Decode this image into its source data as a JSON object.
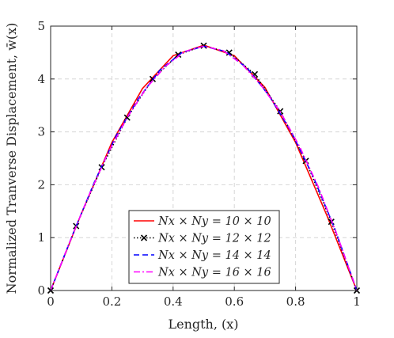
{
  "chart_data": {
    "type": "line",
    "title": "",
    "xlabel": "Length, (x)",
    "ylabel": "Normalized Tranverse Displacement, w̄(x)",
    "xlim": [
      0,
      1
    ],
    "ylim": [
      0,
      5
    ],
    "xticks": [
      "0",
      "0.2",
      "0.4",
      "0.6",
      "0.8",
      "1"
    ],
    "yticks": [
      "0",
      "1",
      "2",
      "3",
      "4",
      "5"
    ],
    "grid": true,
    "legend_position": "bottom-center",
    "series": [
      {
        "name": "Nx × Ny = 10 × 10",
        "color": "#ff0000",
        "style": "solid",
        "marker": "none",
        "x": [
          0,
          0.1,
          0.2,
          0.3,
          0.4,
          0.5,
          0.6,
          0.7,
          0.8,
          0.9,
          1.0
        ],
        "y": [
          0,
          1.45,
          2.8,
          3.82,
          4.44,
          4.64,
          4.44,
          3.84,
          2.8,
          1.45,
          0
        ]
      },
      {
        "name": "Nx × Ny = 12 × 12",
        "color": "#000000",
        "style": "dotted",
        "marker": "x",
        "x": [
          0,
          0.0833,
          0.1667,
          0.25,
          0.3333,
          0.4167,
          0.5,
          0.5833,
          0.6667,
          0.75,
          0.8333,
          0.9167,
          1.0
        ],
        "y": [
          0,
          1.22,
          2.33,
          3.27,
          4.0,
          4.46,
          4.63,
          4.5,
          4.09,
          3.39,
          2.45,
          1.3,
          0
        ]
      },
      {
        "name": "Nx × Ny = 14 × 14",
        "color": "#0000ff",
        "style": "dashed",
        "marker": "none",
        "x": [
          0,
          0.0714,
          0.1429,
          0.2143,
          0.2857,
          0.3571,
          0.4286,
          0.5,
          0.5714,
          0.6429,
          0.7143,
          0.7857,
          0.8571,
          0.9286,
          1.0
        ],
        "y": [
          0,
          1.05,
          2.05,
          2.93,
          3.62,
          4.17,
          4.5,
          4.62,
          4.52,
          4.2,
          3.68,
          3.0,
          2.16,
          1.16,
          0
        ]
      },
      {
        "name": "Nx × Ny = 16 × 16",
        "color": "#ff00ff",
        "style": "dashdot",
        "marker": "none",
        "x": [
          0,
          0.0625,
          0.125,
          0.1875,
          0.25,
          0.3125,
          0.375,
          0.4375,
          0.5,
          0.5625,
          0.625,
          0.6875,
          0.75,
          0.8125,
          0.875,
          0.9375,
          1.0
        ],
        "y": [
          0,
          0.92,
          1.8,
          2.6,
          3.27,
          3.83,
          4.24,
          4.52,
          4.62,
          4.54,
          4.28,
          3.88,
          3.38,
          2.73,
          1.95,
          1.02,
          0
        ]
      }
    ]
  }
}
